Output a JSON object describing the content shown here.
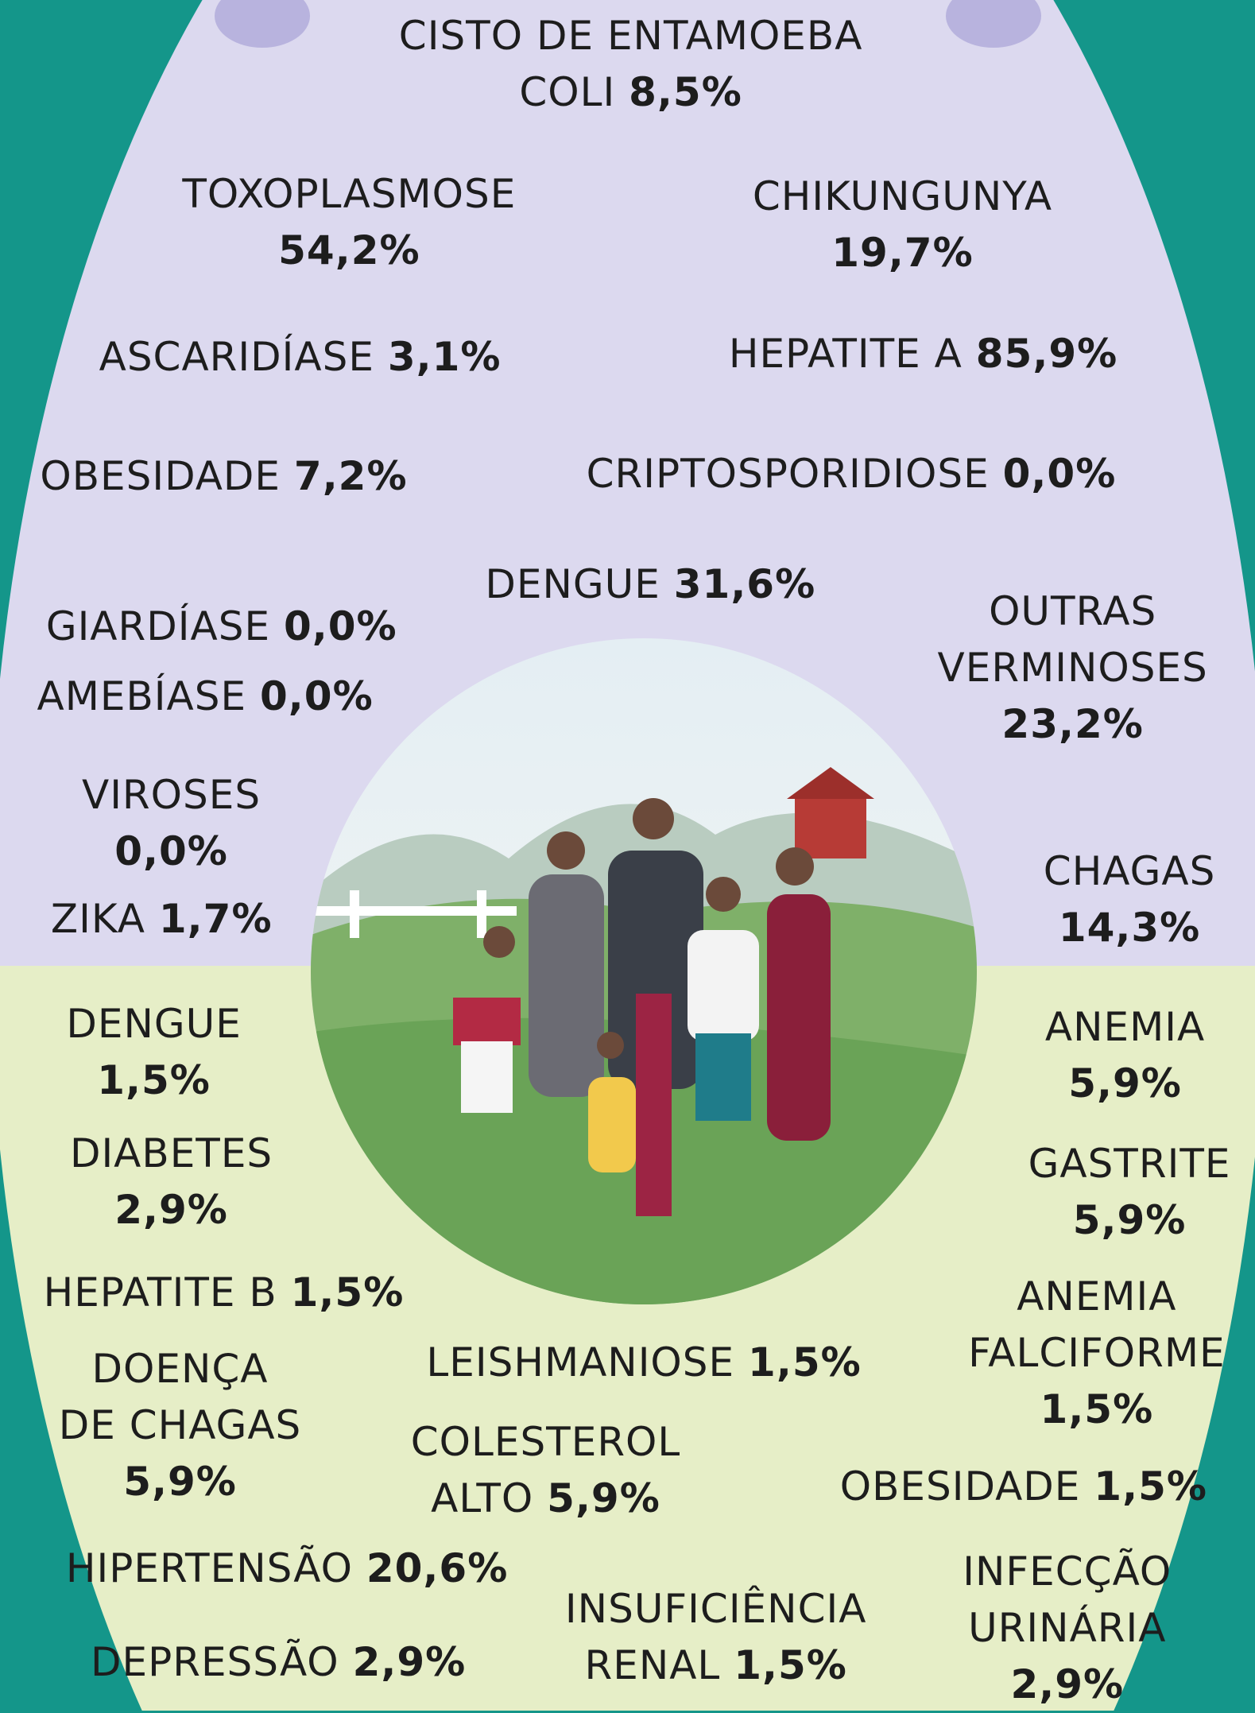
{
  "items": [
    {
      "name": [
        "CISTO DE ENTAMOEBA",
        "COLI"
      ],
      "value": "8,5%"
    },
    {
      "name": [
        "TOXOPLASMOSE"
      ],
      "value": "54,2%"
    },
    {
      "name": [
        "CHIKUNGUNYA"
      ],
      "value": "19,7%"
    },
    {
      "name": [
        "ASCARIDÍASE"
      ],
      "value": "3,1%"
    },
    {
      "name": [
        "HEPATITE A"
      ],
      "value": "85,9%"
    },
    {
      "name": [
        "OBESIDADE"
      ],
      "value": "7,2%"
    },
    {
      "name": [
        "CRIPTOSPORIDIOSE"
      ],
      "value": "0,0%"
    },
    {
      "name": [
        "DENGUE"
      ],
      "value": "31,6%"
    },
    {
      "name": [
        "GIARDÍASE"
      ],
      "value": "0,0%"
    },
    {
      "name": [
        "OUTRAS",
        "VERMINOSES"
      ],
      "value": "23,2%"
    },
    {
      "name": [
        "AMEBÍASE"
      ],
      "value": "0,0%"
    },
    {
      "name": [
        "VIROSES"
      ],
      "value": "0,0%"
    },
    {
      "name": [
        "ZIKA"
      ],
      "value": "1,7%"
    },
    {
      "name": [
        "CHAGAS"
      ],
      "value": "14,3%"
    },
    {
      "name": [
        "DENGUE"
      ],
      "value": "1,5%"
    },
    {
      "name": [
        "ANEMIA"
      ],
      "value": "5,9%"
    },
    {
      "name": [
        "DIABETES"
      ],
      "value": "2,9%"
    },
    {
      "name": [
        "GASTRITE"
      ],
      "value": "5,9%"
    },
    {
      "name": [
        "HEPATITE B"
      ],
      "value": "1,5%"
    },
    {
      "name": [
        "ANEMIA",
        "FALCIFORME"
      ],
      "value": "1,5%"
    },
    {
      "name": [
        "LEISHMANIOSE"
      ],
      "value": "1,5%"
    },
    {
      "name": [
        "DOENÇA",
        "DE CHAGAS"
      ],
      "value": "5,9%"
    },
    {
      "name": [
        "COLESTEROL",
        "ALTO"
      ],
      "value": "5,9%"
    },
    {
      "name": [
        "OBESIDADE"
      ],
      "value": "1,5%"
    },
    {
      "name": [
        "HIPERTENSÃO"
      ],
      "value": "20,6%"
    },
    {
      "name": [
        "INFECÇÃO",
        "URINÁRIA"
      ],
      "value": "2,9%"
    },
    {
      "name": [
        "INSUFICIÊNCIA",
        "RENAL"
      ],
      "value": "1,5%"
    },
    {
      "name": [
        "DEPRESSÃO"
      ],
      "value": "2,9%"
    }
  ]
}
